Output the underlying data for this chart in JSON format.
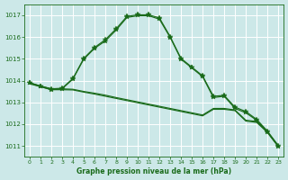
{
  "title": "Graphe pression niveau de la mer (hPa)",
  "bg_color": "#cce8e8",
  "grid_color": "#ffffff",
  "line_color": "#1a6b1a",
  "xlim": [
    -0.5,
    23.5
  ],
  "ylim": [
    1010.5,
    1017.5
  ],
  "yticks": [
    1011,
    1012,
    1013,
    1014,
    1015,
    1016,
    1017
  ],
  "xticks": [
    0,
    1,
    2,
    3,
    4,
    5,
    6,
    7,
    8,
    9,
    10,
    11,
    12,
    13,
    14,
    15,
    16,
    17,
    18,
    19,
    20,
    21,
    22,
    23
  ],
  "flat1": [
    1013.9,
    1013.75,
    1013.62,
    1013.62,
    1013.6,
    1013.5,
    1013.42,
    1013.33,
    1013.22,
    1013.12,
    1013.02,
    1012.92,
    1012.82,
    1012.72,
    1012.62,
    1012.52,
    1012.42,
    1012.72,
    1012.72,
    1012.65,
    1012.18,
    1012.12,
    1011.65,
    1011.0
  ],
  "flat2": [
    1013.85,
    1013.72,
    1013.58,
    1013.58,
    1013.57,
    1013.47,
    1013.38,
    1013.28,
    1013.18,
    1013.08,
    1012.98,
    1012.88,
    1012.78,
    1012.68,
    1012.58,
    1012.48,
    1012.38,
    1012.68,
    1012.68,
    1012.62,
    1012.14,
    1012.08,
    1011.62,
    1010.97
  ],
  "peak1": [
    1013.9,
    1013.75,
    1013.62,
    1013.65,
    1014.1,
    1015.02,
    1015.52,
    1015.88,
    1016.38,
    1016.95,
    1017.02,
    1017.02,
    1016.88,
    1016.02,
    1015.02,
    1014.62,
    1014.22,
    1013.28,
    1013.32,
    1012.78,
    1012.58,
    1012.22,
    1011.68,
    1011.02
  ],
  "peak2": [
    1013.88,
    1013.72,
    1013.58,
    1013.62,
    1014.07,
    1014.98,
    1015.48,
    1015.82,
    1016.32,
    1016.9,
    1016.98,
    1016.98,
    1016.82,
    1015.98,
    1014.98,
    1014.58,
    1014.18,
    1013.22,
    1013.28,
    1012.72,
    1012.52,
    1012.18,
    1011.62,
    1010.98
  ]
}
